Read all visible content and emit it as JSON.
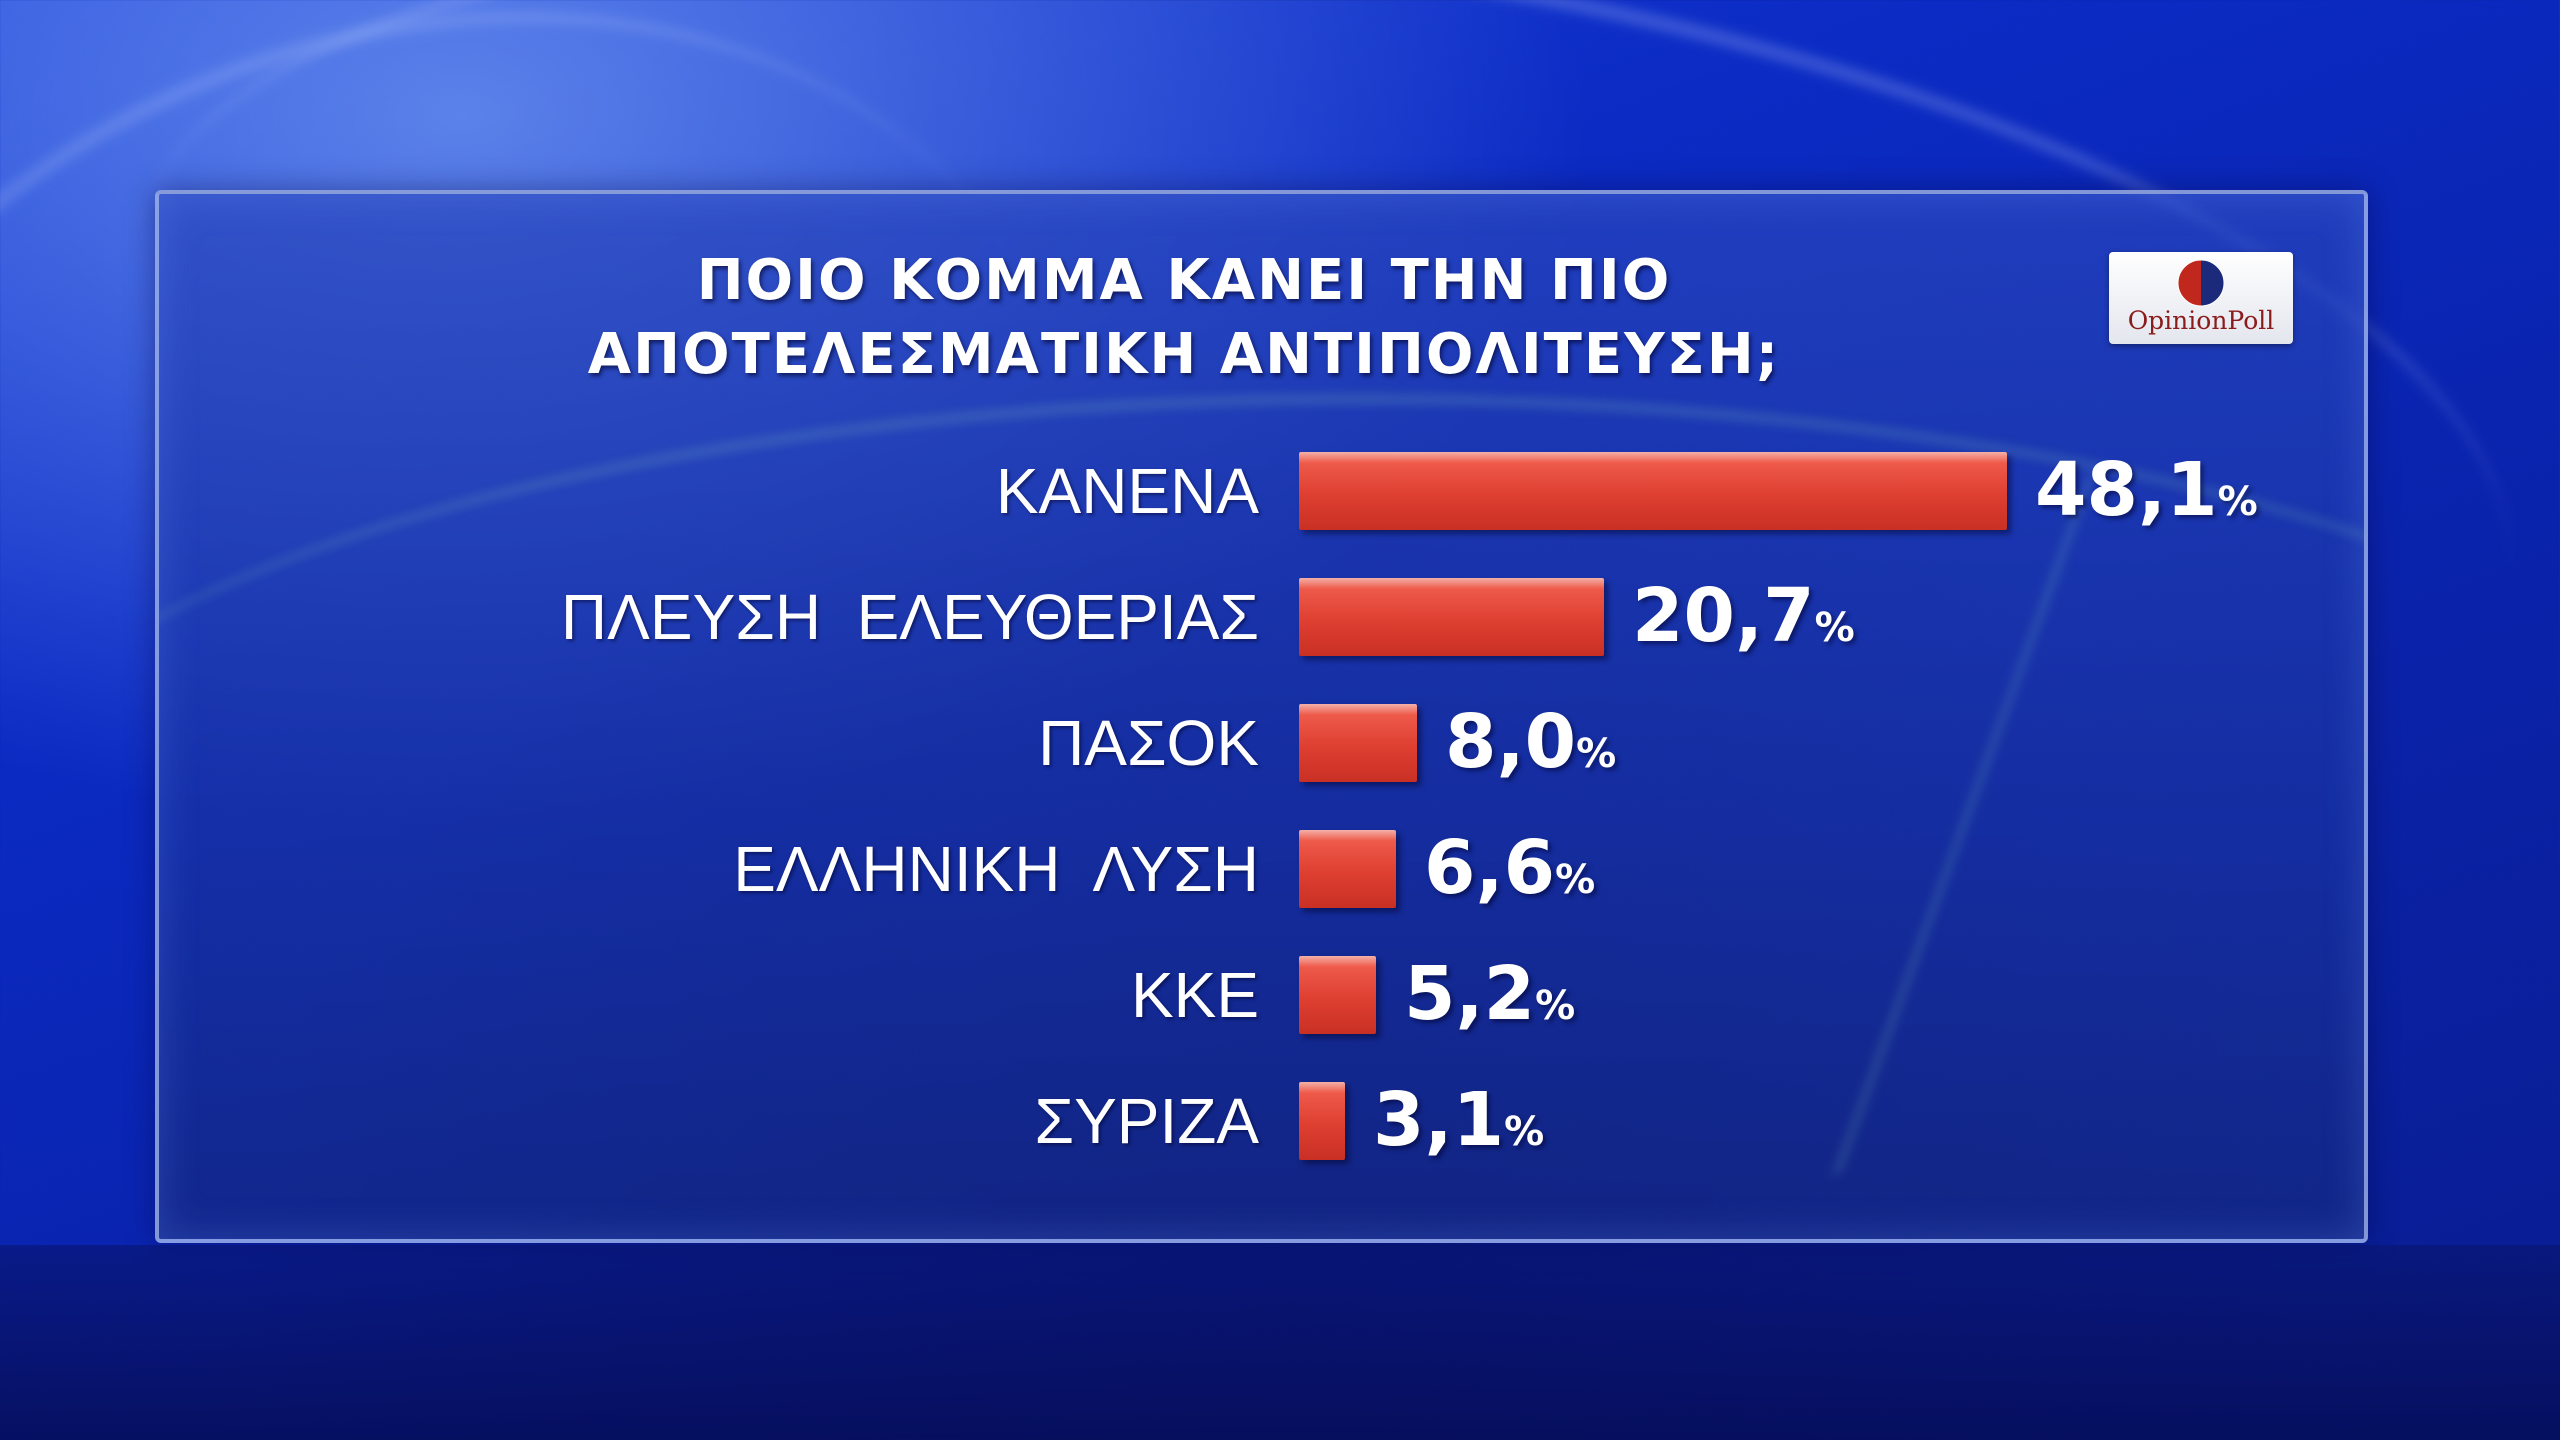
{
  "chart_data": {
    "type": "bar",
    "orientation": "horizontal",
    "title": "ΠΟΙΟ ΚΟΜΜΑ ΚΑΝΕΙ ΤΗΝ ΠΙΟ ΑΠΟΤΕΛΕΣΜΑΤΙΚΗ ΑΝΤΙΠΟΛΙΤΕΥΣΗ;",
    "title_lines": [
      "ΠΟΙΟ ΚΟΜΜΑ ΚΑΝΕΙ ΤΗΝ ΠΙΟ",
      "ΑΠΟΤΕΛΕΣΜΑΤΙΚΗ ΑΝΤΙΠΟΛΙΤΕΥΣΗ;"
    ],
    "categories": [
      "ΚΑΝΕΝΑ",
      "ΠΛΕΥΣΗ  ΕΛΕΥΘΕΡΙΑΣ",
      "ΠΑΣΟΚ",
      "ΕΛΛΗΝΙΚΗ  ΛΥΣΗ",
      "ΚΚΕ",
      "ΣΥΡΙΖΑ"
    ],
    "values": [
      48.1,
      20.7,
      8.0,
      6.6,
      5.2,
      3.1
    ],
    "value_labels": [
      "48,1",
      "20,7",
      "8,0",
      "6,6",
      "5,2",
      "3,1"
    ],
    "unit": "%",
    "bar_color": "#de3f31",
    "grid": false,
    "legend": "none"
  },
  "logo": {
    "text": "OpinionPoll",
    "colors": [
      "#c0271d",
      "#1b2a7a"
    ]
  },
  "colors": {
    "background": "#0b2bc4",
    "text": "#ffffff"
  }
}
